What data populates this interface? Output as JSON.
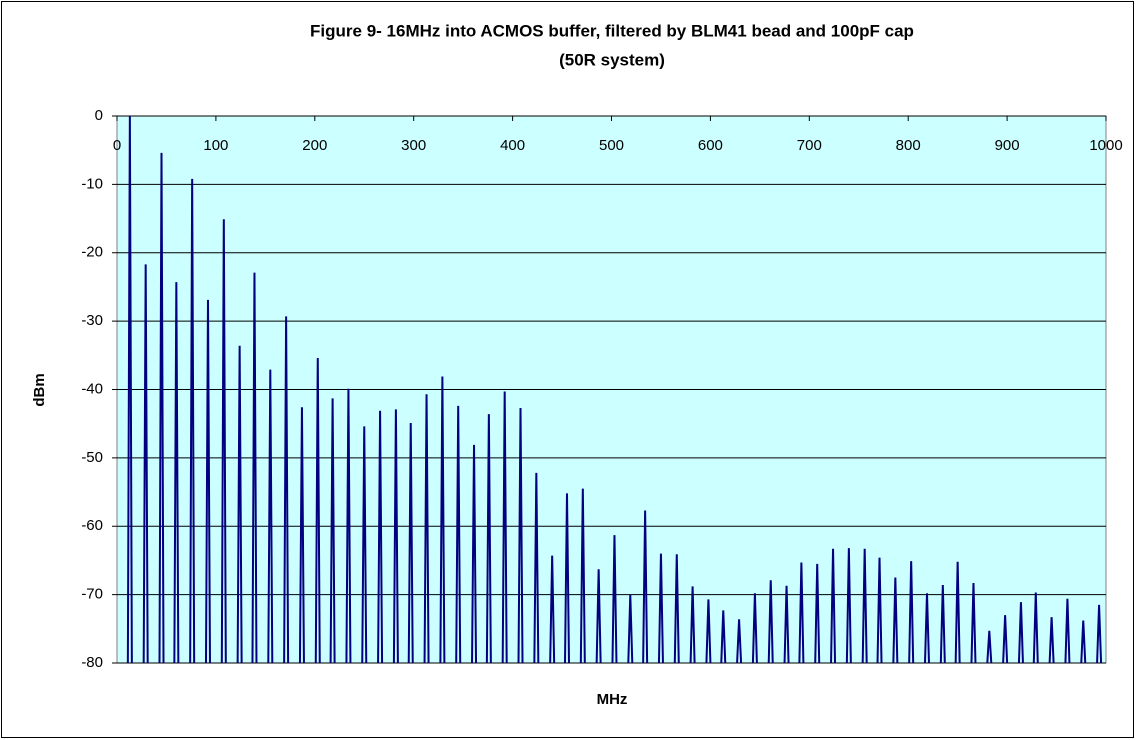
{
  "chart_data": {
    "type": "spectrum",
    "title": "Figure 9- 16MHz into ACMOS buffer, filtered by BLM41 bead and 100pF cap",
    "subtitle": "(50R system)",
    "x_label": "MHz",
    "y_label": "dBm",
    "color": "#000080",
    "background": "#ccffff",
    "grid": true,
    "xlim": [
      0,
      1000
    ],
    "xticks": [
      0,
      100,
      200,
      300,
      400,
      500,
      600,
      700,
      800,
      900,
      1000
    ],
    "ylim": [
      -80,
      0
    ],
    "yticks": [
      0,
      -10,
      -20,
      -30,
      -40,
      -50,
      -60,
      -70,
      -80
    ],
    "x": [
      13,
      29,
      45,
      60,
      76,
      92,
      108,
      124,
      139,
      155,
      171,
      187,
      203,
      218,
      234,
      250,
      266,
      282,
      297,
      313,
      329,
      345,
      361,
      376,
      392,
      408,
      424,
      440,
      455,
      471,
      487,
      503,
      519,
      534,
      550,
      566,
      582,
      598,
      613,
      629,
      645,
      661,
      677,
      692,
      708,
      724,
      740,
      756,
      771,
      787,
      803,
      819,
      835,
      850,
      866,
      882,
      898,
      914,
      929,
      945,
      961,
      977,
      993
    ],
    "values": [
      0,
      -21.7,
      -5.4,
      -24.3,
      -9.2,
      -26.9,
      -15.1,
      -33.6,
      -22.9,
      -37.1,
      -29.3,
      -42.6,
      -35.4,
      -41.3,
      -39.9,
      -45.4,
      -43.1,
      -42.9,
      -44.9,
      -40.7,
      -38.1,
      -42.4,
      -48.1,
      -43.6,
      -40.3,
      -42.7,
      -52.2,
      -64.3,
      -55.2,
      -54.5,
      -66.3,
      -61.3,
      -70,
      -57.7,
      -64,
      -64.1,
      -68.8,
      -70.7,
      -72.3,
      -73.6,
      -69.8,
      -67.9,
      -68.7,
      -65.3,
      -65.5,
      -63.3,
      -63.2,
      -63.3,
      -64.6,
      -67.5,
      -65.1,
      -69.8,
      -68.6,
      -65.2,
      -68.3,
      -75.3,
      -73,
      -71.1,
      -69.7,
      -73.3,
      -70.6,
      -73.8,
      -71.5
    ]
  }
}
